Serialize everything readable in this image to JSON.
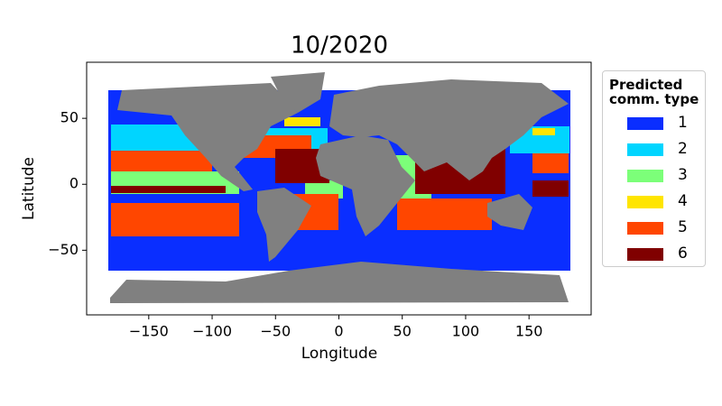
{
  "chart_data": {
    "type": "map",
    "title": "10/2020",
    "x_label": "Longitude",
    "y_label": "Latitude",
    "xlim": [
      -199,
      199
    ],
    "ylim": [
      -99,
      92.5
    ],
    "xticks": [
      {
        "value": -150,
        "label": "−150"
      },
      {
        "value": -100,
        "label": "−100"
      },
      {
        "value": -50,
        "label": "−50"
      },
      0,
      50,
      100,
      150
    ],
    "yticks": [
      {
        "value": -50,
        "label": "−50"
      },
      0,
      50
    ],
    "legend_title": "Predicted comm. type",
    "legend_position": "outside right",
    "series": [
      {
        "name": "1",
        "color": "#0a2eff"
      },
      {
        "name": "2",
        "color": "#00d5ff"
      },
      {
        "name": "3",
        "color": "#7cff79"
      },
      {
        "name": "4",
        "color": "#ffe500"
      },
      {
        "name": "5",
        "color": "#ff4600"
      },
      {
        "name": "6",
        "color": "#800000"
      }
    ]
  }
}
